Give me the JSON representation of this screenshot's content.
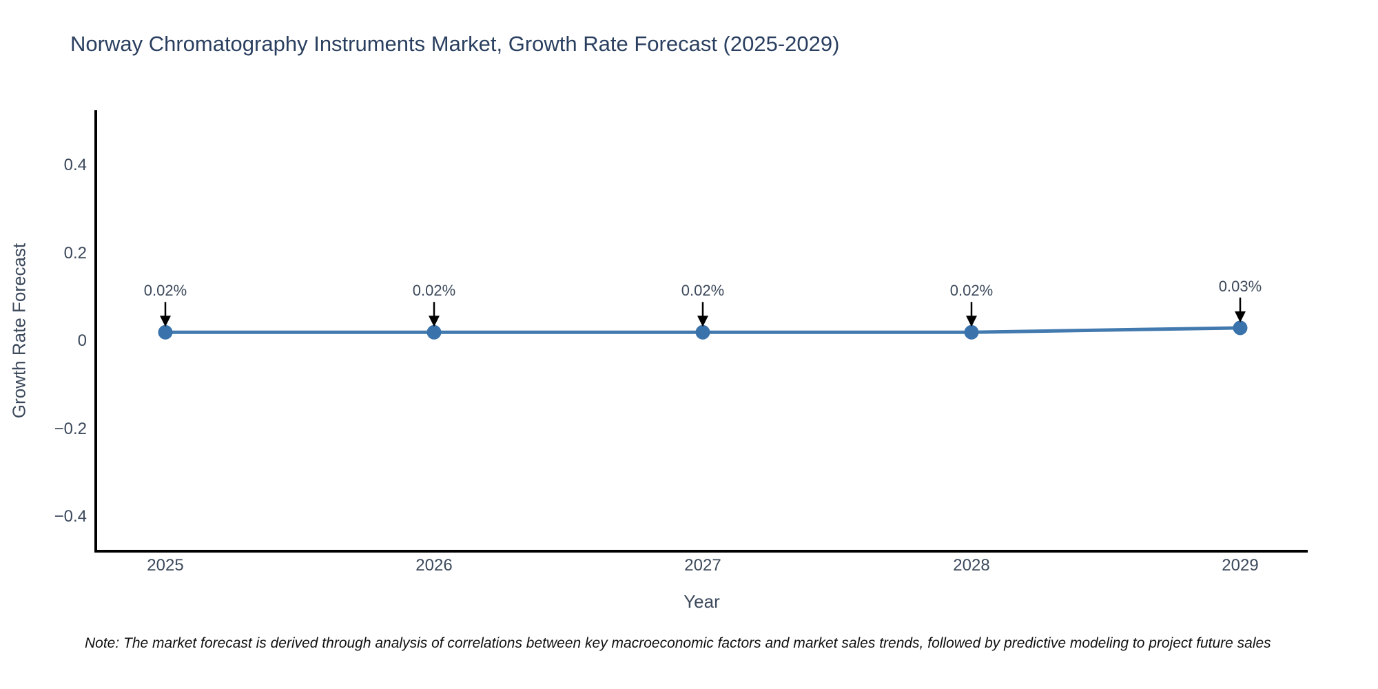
{
  "title": "Norway Chromatography Instruments Market, Growth Rate Forecast (2025-2029)",
  "note": "Note: The market forecast is derived through analysis of correlations between key macroeconomic factors and market sales trends, followed by predictive modeling to project future sales",
  "chart_data": {
    "type": "line",
    "title": "Norway Chromatography Instruments Market, Growth Rate Forecast (2025-2029)",
    "xlabel": "Year",
    "ylabel": "Growth Rate Forecast",
    "categories": [
      "2025",
      "2026",
      "2027",
      "2028",
      "2029"
    ],
    "x": [
      2025,
      2026,
      2027,
      2028,
      2029
    ],
    "series": [
      {
        "name": "Growth Rate Forecast",
        "values": [
          0.02,
          0.02,
          0.02,
          0.02,
          0.03
        ]
      }
    ],
    "point_labels": [
      "0.02%",
      "0.02%",
      "0.02%",
      "0.02%",
      "0.03%"
    ],
    "yticks": {
      "values": [
        0.4,
        0.2,
        0,
        -0.2,
        -0.4
      ],
      "labels": [
        "0.4",
        "0.2",
        "0",
        "−0.2",
        "−0.4"
      ]
    },
    "ylim": [
      -0.5,
      0.53
    ],
    "grid": false,
    "legend": false,
    "marker_style": "circle",
    "annotation_arrows": "down",
    "colors": {
      "line": "#4279ae",
      "marker": "#3a72ab",
      "axis": "#000000",
      "arrow": "#000000",
      "title_text": "#2a3f5f",
      "tick_text": "#3d4a5c",
      "note_text": "#111111",
      "background": "#ffffff"
    }
  }
}
